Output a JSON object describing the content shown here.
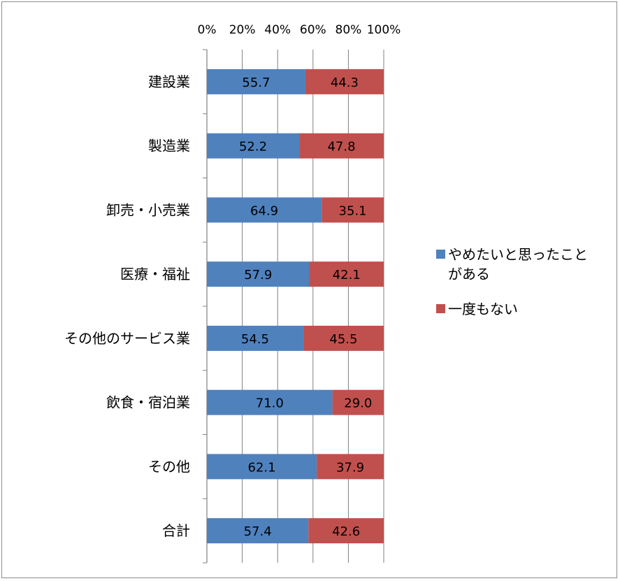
{
  "chart_data": {
    "type": "bar",
    "orientation": "horizontal",
    "stacked": "percent",
    "categories": [
      "建設業",
      "製造業",
      "卸売・小売業",
      "医療・福祉",
      "その他のサービス業",
      "飲食・宿泊業",
      "その他",
      "合計"
    ],
    "series": [
      {
        "name": "やめたいと思ったことがある",
        "name_lines": [
          "やめたいと思ったこと",
          "がある"
        ],
        "color": "#4f81bd",
        "values": [
          55.7,
          52.2,
          64.9,
          57.9,
          54.5,
          71.0,
          62.1,
          57.4
        ],
        "labels": [
          "55.7",
          "52.2",
          "64.9",
          "57.9",
          "54.5",
          "71.0",
          "62.1",
          "57.4"
        ]
      },
      {
        "name": "一度もない",
        "name_lines": [
          "一度もない"
        ],
        "color": "#c0504d",
        "values": [
          44.3,
          47.8,
          35.1,
          42.1,
          45.5,
          29.0,
          37.9,
          42.6
        ],
        "labels": [
          "44.3",
          "47.8",
          "35.1",
          "42.1",
          "45.5",
          "29.0",
          "37.9",
          "42.6"
        ]
      }
    ],
    "xlim": [
      0,
      100
    ],
    "x_ticks": [
      "0%",
      "20%",
      "40%",
      "60%",
      "80%",
      "100%"
    ],
    "x_axis_position": "top",
    "legend_position": "right",
    "gridlines": true
  }
}
